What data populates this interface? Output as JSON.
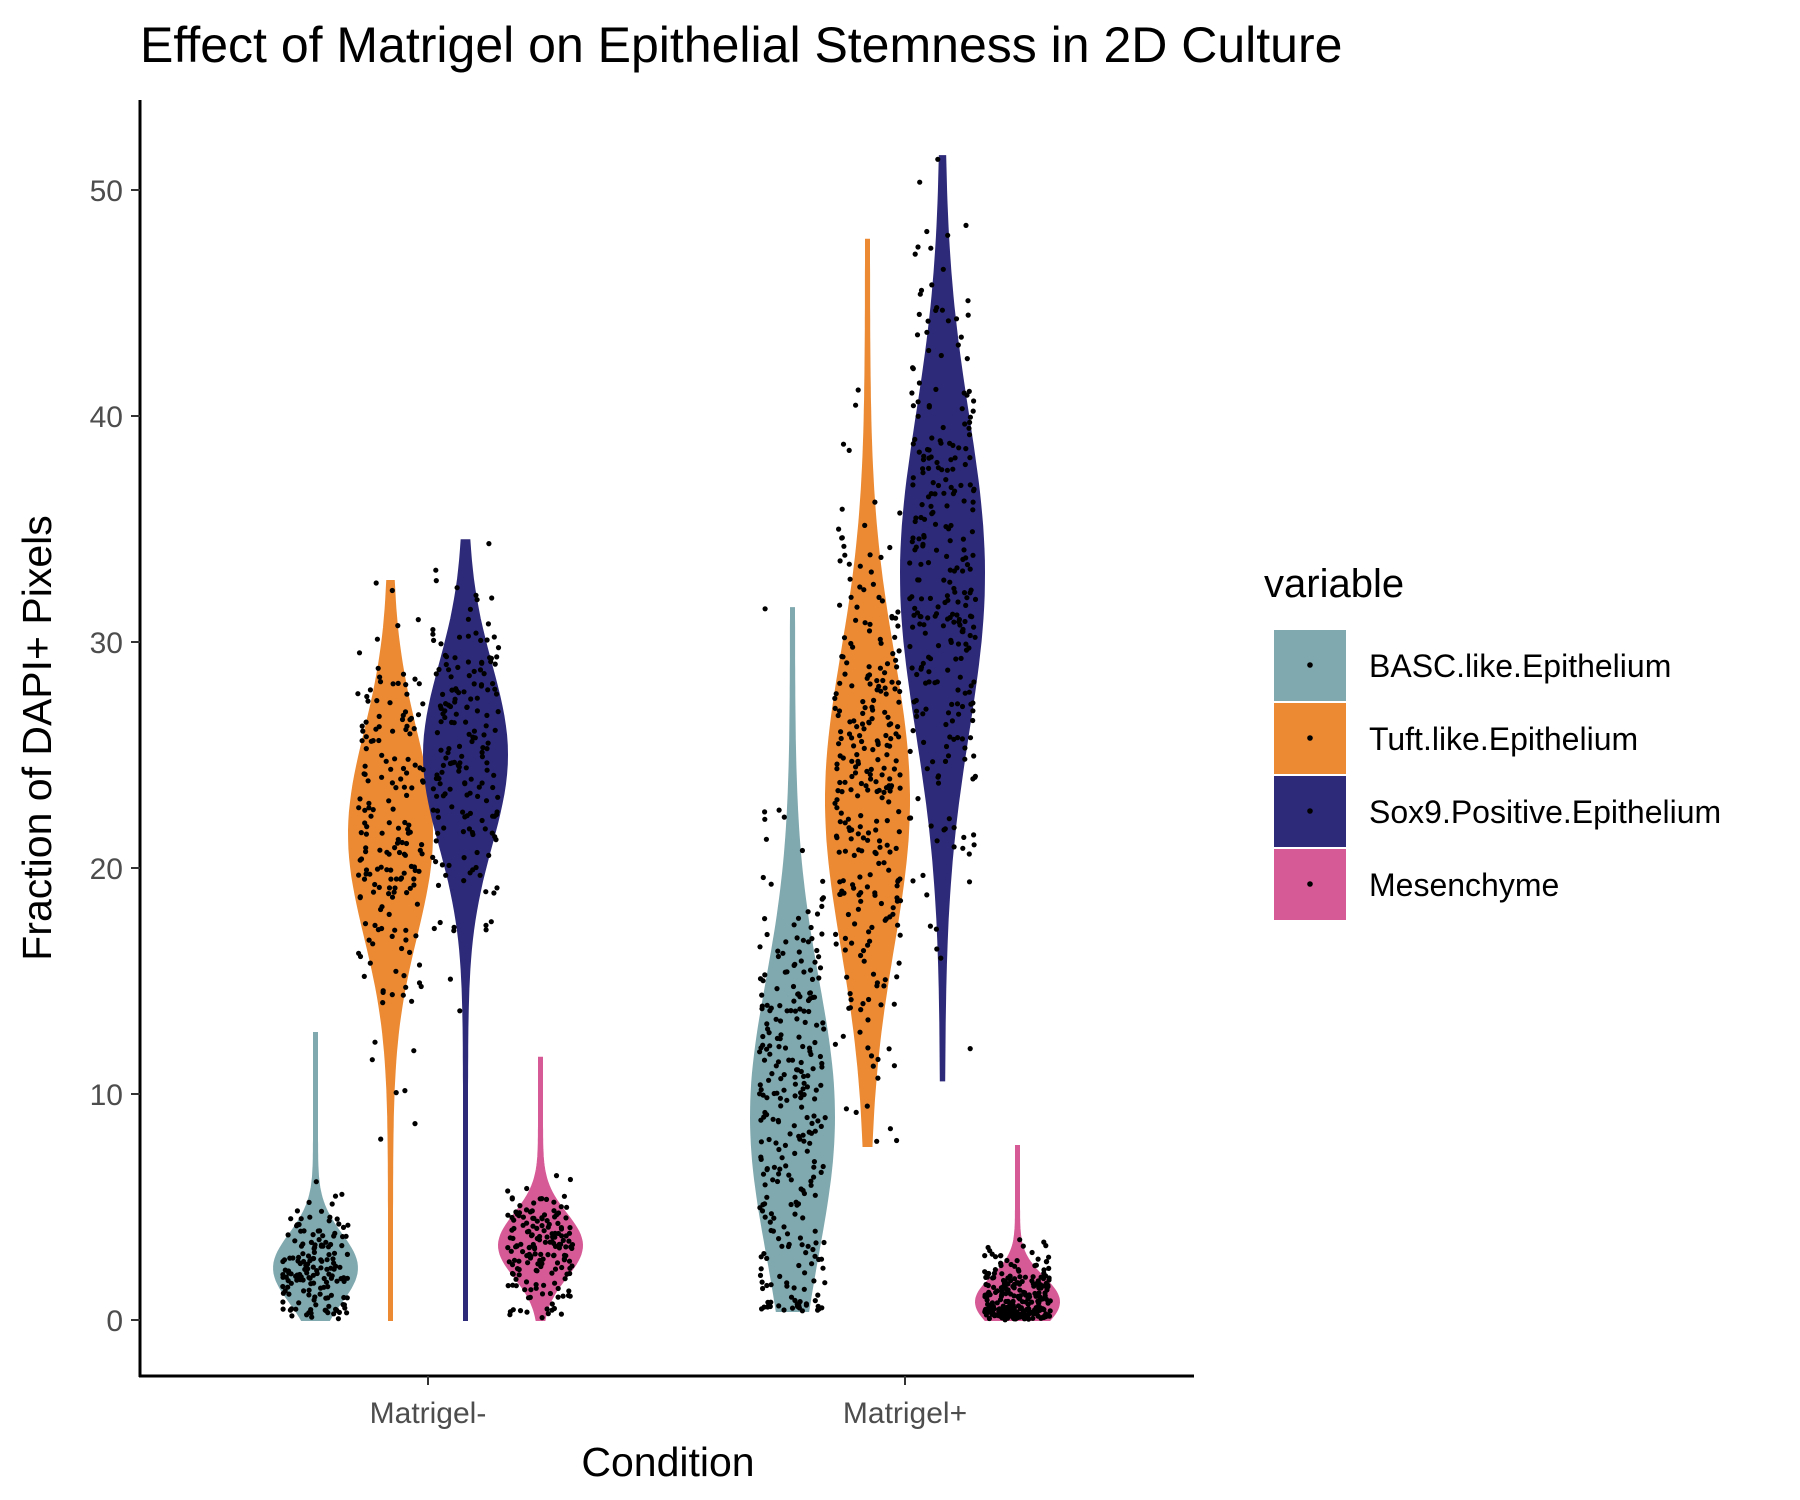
{
  "chart_data": {
    "type": "violin",
    "title": "Effect of Matrigel on Epithelial Stemness in 2D Culture",
    "xlabel": "Condition",
    "ylabel": "Fraction of DAPI+ Pixels",
    "categories": [
      "Matrigel-",
      "Matrigel+"
    ],
    "yticks": [
      "0",
      "10",
      "20",
      "30",
      "40",
      "50"
    ],
    "ylim": [
      -2,
      54
    ],
    "grid": false,
    "legend": {
      "title": "variable",
      "position": "right"
    },
    "series": [
      {
        "name": "BASC.like.Epithelium",
        "color": "#80A9AF",
        "groups": [
          {
            "category": "Matrigel-",
            "min": 0.0,
            "max": 12.7,
            "peak": 2.3,
            "spread": 1.5,
            "points": 160
          },
          {
            "category": "Matrigel+",
            "min": 0.4,
            "max": 31.5,
            "peak": 9.0,
            "spread": 6.0,
            "points": 280
          }
        ]
      },
      {
        "name": "Tuft.like.Epithelium",
        "color": "#EB8A33",
        "groups": [
          {
            "category": "Matrigel-",
            "min": 0.0,
            "max": 32.7,
            "peak": 21.5,
            "spread": 4.5,
            "points": 180
          },
          {
            "category": "Matrigel+",
            "min": 7.7,
            "max": 47.8,
            "peak": 23.0,
            "spread": 6.5,
            "points": 280
          }
        ]
      },
      {
        "name": "Sox9.Positive.Epithelium",
        "color": "#2E2A7A",
        "groups": [
          {
            "category": "Matrigel-",
            "min": 0.0,
            "max": 34.5,
            "peak": 25.0,
            "spread": 4.0,
            "points": 180
          },
          {
            "category": "Matrigel+",
            "min": 10.6,
            "max": 51.5,
            "peak": 33.0,
            "spread": 7.0,
            "points": 280
          }
        ]
      },
      {
        "name": "Mesenchyme",
        "color": "#D65A96",
        "groups": [
          {
            "category": "Matrigel-",
            "min": 0.0,
            "max": 11.6,
            "peak": 3.3,
            "spread": 1.4,
            "points": 170
          },
          {
            "category": "Matrigel+",
            "min": 0.0,
            "max": 7.7,
            "peak": 0.8,
            "spread": 1.1,
            "points": 260
          }
        ]
      }
    ]
  }
}
